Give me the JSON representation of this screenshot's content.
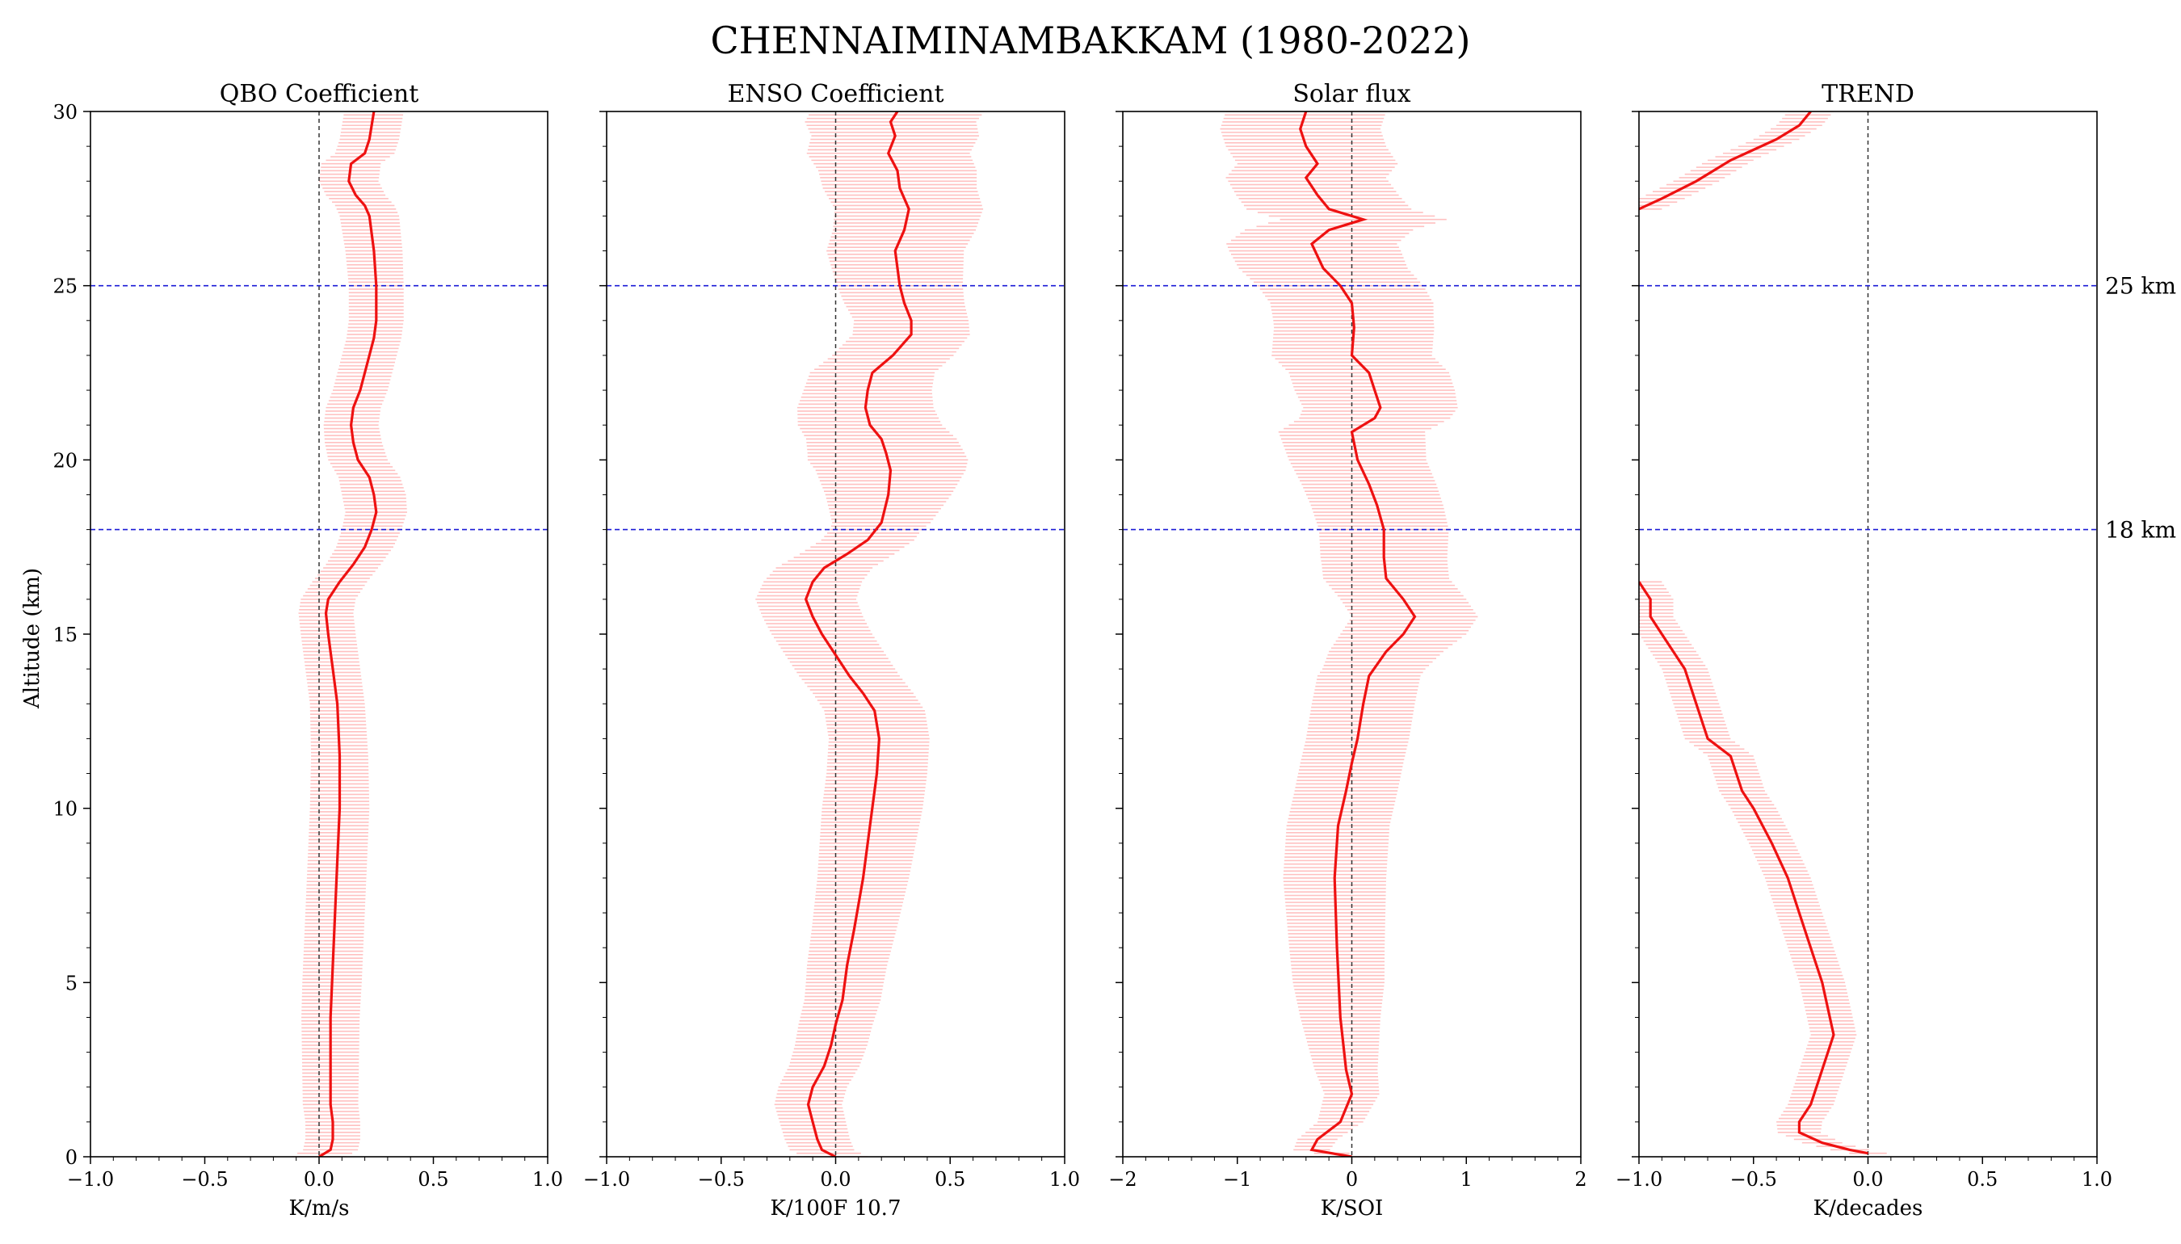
{
  "title": "CHENNAIMINAMBAKKAM (1980-2022)",
  "y_axis_label": "Altitude (km)",
  "reference_lines": [
    {
      "value": 25,
      "label": "25 km"
    },
    {
      "value": 18,
      "label": "18 km"
    }
  ],
  "colors": {
    "line": "#ee1111",
    "errorbar": "#ffc0c0",
    "reference": "#1a1ad6",
    "zero": "#333333"
  },
  "chart_data": [
    {
      "type": "line",
      "title": "QBO Coefficient",
      "xlabel": "K/m/s",
      "ylabel": "Altitude (km)",
      "xlim": [
        -1.0,
        1.0
      ],
      "ylim": [
        0,
        30
      ],
      "xticks": [
        "−1.0",
        "−0.5",
        "0.0",
        "0.5",
        "1.0"
      ],
      "xtick_values": [
        -1.0,
        -0.5,
        0.0,
        0.5,
        1.0
      ],
      "yticks": [
        0,
        5,
        10,
        15,
        20,
        25,
        30
      ],
      "profile": [
        [
          0.0,
          0.0
        ],
        [
          0.05,
          0.2
        ],
        [
          0.06,
          0.5
        ],
        [
          0.06,
          1.0
        ],
        [
          0.05,
          1.5
        ],
        [
          0.05,
          2.5
        ],
        [
          0.05,
          4.0
        ],
        [
          0.06,
          5.5
        ],
        [
          0.07,
          7.0
        ],
        [
          0.08,
          8.5
        ],
        [
          0.09,
          10.0
        ],
        [
          0.09,
          11.5
        ],
        [
          0.08,
          13.0
        ],
        [
          0.06,
          14.0
        ],
        [
          0.04,
          15.0
        ],
        [
          0.03,
          15.6
        ],
        [
          0.04,
          16.0
        ],
        [
          0.09,
          16.5
        ],
        [
          0.15,
          17.0
        ],
        [
          0.2,
          17.5
        ],
        [
          0.23,
          18.0
        ],
        [
          0.25,
          18.5
        ],
        [
          0.24,
          19.0
        ],
        [
          0.22,
          19.5
        ],
        [
          0.17,
          20.0
        ],
        [
          0.15,
          20.5
        ],
        [
          0.14,
          21.0
        ],
        [
          0.15,
          21.5
        ],
        [
          0.18,
          22.0
        ],
        [
          0.2,
          22.5
        ],
        [
          0.22,
          23.0
        ],
        [
          0.24,
          23.5
        ],
        [
          0.25,
          24.0
        ],
        [
          0.25,
          25.0
        ],
        [
          0.24,
          26.0
        ],
        [
          0.23,
          26.5
        ],
        [
          0.22,
          27.0
        ],
        [
          0.2,
          27.3
        ],
        [
          0.16,
          27.6
        ],
        [
          0.13,
          28.0
        ],
        [
          0.14,
          28.5
        ],
        [
          0.2,
          28.8
        ],
        [
          0.22,
          29.2
        ],
        [
          0.23,
          29.6
        ],
        [
          0.24,
          30.0
        ]
      ],
      "err_half": [
        [
          0.0,
          0.12
        ],
        [
          1.0,
          0.12
        ],
        [
          5.0,
          0.13
        ],
        [
          10.0,
          0.13
        ],
        [
          13.0,
          0.12
        ],
        [
          15.0,
          0.12
        ],
        [
          16.0,
          0.12
        ],
        [
          17.0,
          0.12
        ],
        [
          18.0,
          0.13
        ],
        [
          19.0,
          0.14
        ],
        [
          20.0,
          0.13
        ],
        [
          21.0,
          0.12
        ],
        [
          22.0,
          0.12
        ],
        [
          25.0,
          0.12
        ],
        [
          27.0,
          0.13
        ],
        [
          28.0,
          0.13
        ],
        [
          29.0,
          0.13
        ],
        [
          30.0,
          0.13
        ]
      ]
    },
    {
      "type": "line",
      "title": "ENSO Coefficient",
      "xlabel": "K/100F 10.7",
      "ylabel": "",
      "xlim": [
        -1.0,
        1.0
      ],
      "ylim": [
        0,
        30
      ],
      "xticks": [
        "−1.0",
        "−0.5",
        "0.0",
        "0.5",
        "1.0"
      ],
      "xtick_values": [
        -1.0,
        -0.5,
        0.0,
        0.5,
        1.0
      ],
      "yticks": [
        0,
        5,
        10,
        15,
        20,
        25,
        30
      ],
      "profile": [
        [
          0.0,
          0.0
        ],
        [
          -0.06,
          0.2
        ],
        [
          -0.08,
          0.5
        ],
        [
          -0.1,
          1.0
        ],
        [
          -0.12,
          1.5
        ],
        [
          -0.1,
          2.0
        ],
        [
          -0.05,
          2.6
        ],
        [
          -0.02,
          3.2
        ],
        [
          0.0,
          3.8
        ],
        [
          0.03,
          4.5
        ],
        [
          0.05,
          5.5
        ],
        [
          0.08,
          6.5
        ],
        [
          0.12,
          8.0
        ],
        [
          0.15,
          9.5
        ],
        [
          0.18,
          11.0
        ],
        [
          0.19,
          12.0
        ],
        [
          0.17,
          12.8
        ],
        [
          0.12,
          13.3
        ],
        [
          0.06,
          13.8
        ],
        [
          0.0,
          14.4
        ],
        [
          -0.06,
          15.0
        ],
        [
          -0.1,
          15.5
        ],
        [
          -0.13,
          16.0
        ],
        [
          -0.1,
          16.5
        ],
        [
          -0.05,
          16.9
        ],
        [
          0.05,
          17.3
        ],
        [
          0.14,
          17.7
        ],
        [
          0.2,
          18.2
        ],
        [
          0.23,
          19.0
        ],
        [
          0.24,
          19.7
        ],
        [
          0.22,
          20.2
        ],
        [
          0.2,
          20.6
        ],
        [
          0.15,
          21.0
        ],
        [
          0.13,
          21.5
        ],
        [
          0.14,
          22.0
        ],
        [
          0.16,
          22.5
        ],
        [
          0.25,
          23.0
        ],
        [
          0.33,
          23.6
        ],
        [
          0.33,
          24.0
        ],
        [
          0.3,
          24.5
        ],
        [
          0.28,
          25.0
        ],
        [
          0.26,
          26.0
        ],
        [
          0.3,
          26.6
        ],
        [
          0.32,
          27.2
        ],
        [
          0.28,
          27.8
        ],
        [
          0.27,
          28.3
        ],
        [
          0.23,
          28.8
        ],
        [
          0.26,
          29.3
        ],
        [
          0.24,
          29.7
        ],
        [
          0.27,
          30.0
        ]
      ],
      "err_half": [
        [
          0.0,
          0.14
        ],
        [
          2.0,
          0.15
        ],
        [
          5.0,
          0.17
        ],
        [
          8.0,
          0.2
        ],
        [
          10.0,
          0.22
        ],
        [
          13.0,
          0.22
        ],
        [
          15.0,
          0.22
        ],
        [
          16.0,
          0.22
        ],
        [
          18.0,
          0.2
        ],
        [
          20.0,
          0.35
        ],
        [
          22.0,
          0.28
        ],
        [
          24.0,
          0.25
        ],
        [
          26.0,
          0.3
        ],
        [
          28.0,
          0.34
        ],
        [
          30.0,
          0.38
        ]
      ]
    },
    {
      "type": "line",
      "title": "Solar flux",
      "xlabel": "K/SOI",
      "ylabel": "",
      "xlim": [
        -2,
        2
      ],
      "ylim": [
        0,
        30
      ],
      "xticks": [
        "−2",
        "−1",
        "0",
        "1",
        "2"
      ],
      "xtick_values": [
        -2,
        -1,
        0,
        1,
        2
      ],
      "yticks": [
        0,
        5,
        10,
        15,
        20,
        25,
        30
      ],
      "profile": [
        [
          0.0,
          0.0
        ],
        [
          -0.35,
          0.2
        ],
        [
          -0.3,
          0.5
        ],
        [
          -0.1,
          1.0
        ],
        [
          0.0,
          1.8
        ],
        [
          -0.05,
          2.5
        ],
        [
          -0.1,
          4.0
        ],
        [
          -0.13,
          6.0
        ],
        [
          -0.15,
          8.0
        ],
        [
          -0.12,
          9.5
        ],
        [
          -0.05,
          10.5
        ],
        [
          0.0,
          11.3
        ],
        [
          0.05,
          12.0
        ],
        [
          0.1,
          13.0
        ],
        [
          0.15,
          13.8
        ],
        [
          0.3,
          14.5
        ],
        [
          0.45,
          15.0
        ],
        [
          0.55,
          15.5
        ],
        [
          0.45,
          16.0
        ],
        [
          0.3,
          16.6
        ],
        [
          0.28,
          17.2
        ],
        [
          0.28,
          18.0
        ],
        [
          0.22,
          18.7
        ],
        [
          0.15,
          19.3
        ],
        [
          0.05,
          20.0
        ],
        [
          0.0,
          20.8
        ],
        [
          0.2,
          21.2
        ],
        [
          0.25,
          21.5
        ],
        [
          0.2,
          22.0
        ],
        [
          0.15,
          22.5
        ],
        [
          0.0,
          23.0
        ],
        [
          0.02,
          23.8
        ],
        [
          0.0,
          24.5
        ],
        [
          -0.1,
          25.0
        ],
        [
          -0.25,
          25.5
        ],
        [
          -0.35,
          26.2
        ],
        [
          -0.2,
          26.6
        ],
        [
          0.1,
          26.9
        ],
        [
          -0.2,
          27.2
        ],
        [
          -0.3,
          27.6
        ],
        [
          -0.4,
          28.1
        ],
        [
          -0.3,
          28.5
        ],
        [
          -0.4,
          29.0
        ],
        [
          -0.45,
          29.5
        ],
        [
          -0.4,
          30.0
        ]
      ],
      "err_half": [
        [
          0.0,
          0.15
        ],
        [
          1.0,
          0.2
        ],
        [
          3.0,
          0.3
        ],
        [
          5.0,
          0.4
        ],
        [
          8.0,
          0.45
        ],
        [
          10.0,
          0.45
        ],
        [
          12.0,
          0.45
        ],
        [
          14.0,
          0.45
        ],
        [
          15.0,
          0.55
        ],
        [
          17.0,
          0.55
        ],
        [
          20.0,
          0.6
        ],
        [
          22.0,
          0.7
        ],
        [
          24.0,
          0.7
        ],
        [
          26.0,
          0.75
        ],
        [
          28.0,
          0.7
        ],
        [
          30.0,
          0.7
        ]
      ]
    },
    {
      "type": "line",
      "title": "TREND",
      "xlabel": "K/decades",
      "ylabel": "",
      "xlim": [
        -1.0,
        1.0
      ],
      "ylim": [
        0,
        30
      ],
      "xticks": [
        "−1.0",
        "−0.5",
        "0.0",
        "0.5",
        "1.0"
      ],
      "xtick_values": [
        -1.0,
        -0.5,
        0.0,
        0.5,
        1.0
      ],
      "yticks": [
        0,
        5,
        10,
        15,
        20,
        25,
        30
      ],
      "profile": [
        [
          0.0,
          0.1
        ],
        [
          -0.08,
          0.2
        ],
        [
          -0.2,
          0.4
        ],
        [
          -0.3,
          0.7
        ],
        [
          -0.3,
          1.0
        ],
        [
          -0.25,
          1.5
        ],
        [
          -0.2,
          2.5
        ],
        [
          -0.15,
          3.5
        ],
        [
          -0.2,
          5.0
        ],
        [
          -0.25,
          6.0
        ],
        [
          -0.3,
          7.0
        ],
        [
          -0.35,
          8.0
        ],
        [
          -0.42,
          9.0
        ],
        [
          -0.5,
          10.0
        ],
        [
          -0.55,
          10.5
        ],
        [
          -0.6,
          11.5
        ],
        [
          -0.7,
          12.0
        ],
        [
          -0.75,
          13.0
        ],
        [
          -0.8,
          14.0
        ],
        [
          -0.85,
          14.5
        ],
        [
          -0.9,
          15.0
        ],
        [
          -0.95,
          15.5
        ],
        [
          -0.95,
          16.0
        ],
        [
          -1.0,
          16.5
        ]
      ],
      "profile_upper": [
        [
          -1.0,
          27.2
        ],
        [
          -0.9,
          27.5
        ],
        [
          -0.75,
          28.0
        ],
        [
          -0.6,
          28.6
        ],
        [
          -0.4,
          29.2
        ],
        [
          -0.3,
          29.6
        ],
        [
          -0.25,
          30.0
        ]
      ],
      "err_half": [
        [
          0.0,
          0.08
        ],
        [
          1.0,
          0.1
        ],
        [
          3.0,
          0.1
        ],
        [
          6.0,
          0.1
        ],
        [
          10.0,
          0.1
        ],
        [
          13.0,
          0.1
        ],
        [
          16.0,
          0.1
        ],
        [
          27.0,
          0.1
        ],
        [
          30.0,
          0.1
        ]
      ]
    }
  ]
}
